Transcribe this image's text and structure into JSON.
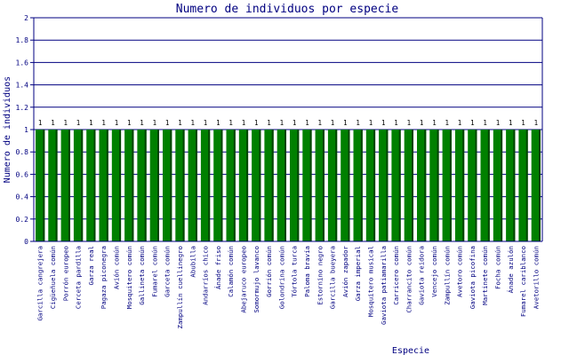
{
  "chart_data": {
    "type": "bar",
    "title": "Numero de individuos por especie",
    "xlabel": "Especie",
    "ylabel": "Numero de individuos",
    "ylim": [
      0,
      2
    ],
    "yticks": [
      0,
      0.2,
      0.4,
      0.6,
      0.8,
      1,
      1.2,
      1.4,
      1.6,
      1.8,
      2
    ],
    "grid": true,
    "legend": "none",
    "colors": {
      "bar_fill": "#008000",
      "bar_side": "#004400",
      "grid": "#000080",
      "axis": "#000080",
      "text": "#000080"
    },
    "categories": [
      "Garcilla cangrejera",
      "Cigüeñuela común",
      "Porrón europeo",
      "Cerceta pardilla",
      "Garza real",
      "Pagaza piconegra",
      "Avión común",
      "Mosquitero común",
      "Gallineta común",
      "Fumarel común",
      "Garceta común",
      "Zampullín cuellinegro",
      "Abubilla",
      "Andarríos chico",
      "Ánade friso",
      "Calamón común",
      "Abejaruco europeo",
      "Somormujo lavanco",
      "Gorrión común",
      "Golondrina común",
      "Tórtola turca",
      "Paloma bravía",
      "Estornino negro",
      "Garcilla bueyera",
      "Avión zapador",
      "Garza imperial",
      "Mosquitero musical",
      "Gaviota patiamarilla",
      "Carricero común",
      "Charrancito común",
      "Gaviota reidora",
      "Vencejo común",
      "Zampullín común",
      "Avetoro común",
      "Gaviota picofina",
      "Martinete común",
      "Focha común",
      "Ánade azulón",
      "Fumarel cariblanco",
      "Avetorillo común"
    ],
    "values": [
      1,
      1,
      1,
      1,
      1,
      1,
      1,
      1,
      1,
      1,
      1,
      1,
      1,
      1,
      1,
      1,
      1,
      1,
      1,
      1,
      1,
      1,
      1,
      1,
      1,
      1,
      1,
      1,
      1,
      1,
      1,
      1,
      1,
      1,
      1,
      1,
      1,
      1,
      1,
      1
    ],
    "value_labels": [
      "1",
      "1",
      "1",
      "1",
      "1",
      "1",
      "1",
      "1",
      "1",
      "1",
      "1",
      "1",
      "1",
      "1",
      "1",
      "1",
      "1",
      "1",
      "1",
      "1",
      "1",
      "1",
      "1",
      "1",
      "1",
      "1",
      "1",
      "1",
      "1",
      "1",
      "1",
      "1",
      "1",
      "1",
      "1",
      "1",
      "1",
      "1",
      "1",
      "1"
    ]
  }
}
